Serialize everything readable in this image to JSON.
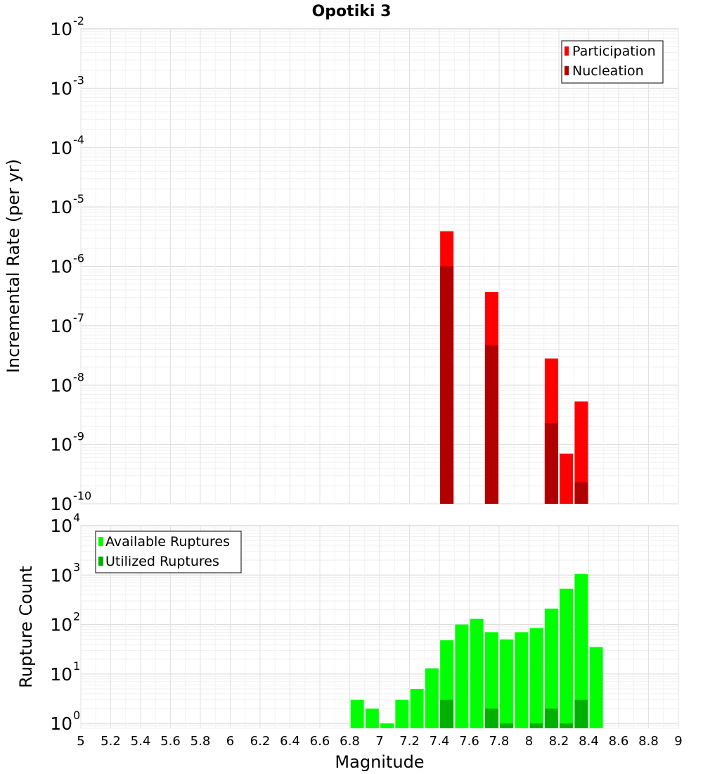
{
  "title": "Opotiki 3",
  "chart_data": [
    {
      "type": "bar",
      "title": "Opotiki 3",
      "xlabel": "Magnitude",
      "ylabel": "Incremental Rate (per yr)",
      "yscale": "log",
      "ylim": [
        1e-10,
        0.01
      ],
      "xlim": [
        5,
        9
      ],
      "grid": true,
      "legend_position": "top-right",
      "y_ticks": [
        {
          "base": "10",
          "exp": "-10"
        },
        {
          "base": "10",
          "exp": "-9"
        },
        {
          "base": "10",
          "exp": "-8"
        },
        {
          "base": "10",
          "exp": "-7"
        },
        {
          "base": "10",
          "exp": "-6"
        },
        {
          "base": "10",
          "exp": "-5"
        },
        {
          "base": "10",
          "exp": "-4"
        },
        {
          "base": "10",
          "exp": "-3"
        },
        {
          "base": "10",
          "exp": "-2"
        }
      ],
      "series": [
        {
          "name": "Participation",
          "color": "#ff0000",
          "x": [
            7.45,
            7.75,
            8.15,
            8.25,
            8.35
          ],
          "values": [
            3.9e-06,
            3.7e-07,
            2.8e-08,
            7e-10,
            5.3e-09
          ]
        },
        {
          "name": "Nucleation",
          "color": "#b00000",
          "x": [
            7.45,
            7.75,
            8.15,
            8.35
          ],
          "values": [
            1e-06,
            4.7e-08,
            2.3e-09,
            2.3e-10
          ]
        }
      ]
    },
    {
      "type": "bar",
      "xlabel": "Magnitude",
      "ylabel": "Rupture Count",
      "yscale": "log",
      "ylim": [
        0.8,
        10000
      ],
      "xlim": [
        5,
        9
      ],
      "grid": true,
      "legend_position": "top-left",
      "y_ticks": [
        {
          "base": "10",
          "exp": "0"
        },
        {
          "base": "10",
          "exp": "1"
        },
        {
          "base": "10",
          "exp": "2"
        },
        {
          "base": "10",
          "exp": "3"
        },
        {
          "base": "10",
          "exp": "4"
        }
      ],
      "x_ticks": [
        "5",
        "5.2",
        "5.4",
        "5.6",
        "5.8",
        "6",
        "6.2",
        "6.4",
        "6.6",
        "6.8",
        "7",
        "7.2",
        "7.4",
        "7.6",
        "7.8",
        "8",
        "8.2",
        "8.4",
        "8.6",
        "8.8",
        "9"
      ],
      "series": [
        {
          "name": "Available Ruptures",
          "color": "#00ff00",
          "x": [
            6.85,
            6.95,
            7.05,
            7.15,
            7.25,
            7.35,
            7.45,
            7.55,
            7.65,
            7.75,
            7.85,
            7.95,
            8.05,
            8.15,
            8.25,
            8.35,
            8.45
          ],
          "values": [
            3,
            2,
            1,
            3,
            5,
            13,
            48,
            100,
            130,
            70,
            50,
            70,
            85,
            210,
            530,
            1050,
            35
          ]
        },
        {
          "name": "Utilized Ruptures",
          "color": "#00b000",
          "x": [
            7.45,
            7.75,
            7.85,
            8.05,
            8.15,
            8.25,
            8.35
          ],
          "values": [
            3,
            2,
            1,
            1,
            2,
            1,
            3
          ]
        }
      ]
    }
  ]
}
